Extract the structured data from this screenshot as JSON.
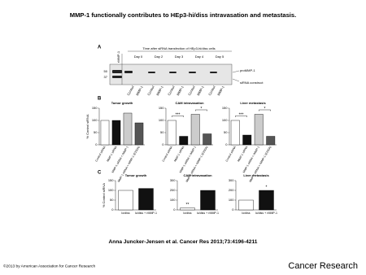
{
  "title": "MMP-1 functionally contributes to HEp3-hi/diss intravasation and metastasis.",
  "citation": "Anna Juncker-Jensen et al. Cancer Res 2013;73:4196-4211",
  "copyright": "©2013 by American Association for Cancer Research",
  "brand": "Cancer Research",
  "panel_a": {
    "label": "A",
    "header": "Time after siRNA transfection of HEp3-hi/diss cells",
    "control_lane": "rMMP-1",
    "days": [
      "Day 0",
      "Day 2",
      "Day 3",
      "Day 4",
      "Day 5"
    ],
    "lanes": [
      "Control",
      "MMP-1"
    ],
    "markers": [
      "50",
      "37"
    ],
    "band_label": "proMMP-1",
    "construct_label": "siRNA construct"
  },
  "panel_b_label": "B",
  "panel_c_label": "C",
  "chart_data": [
    {
      "type": "bar",
      "title": "Tumor growth",
      "ylabel": "% Control siRNA",
      "categories": [
        "Control siRNA",
        "MMP-1 siRNA",
        "MMP-1 siRNA + rMMP-1",
        "MMP-1 siRNA + rMMP-1 (E200A)"
      ],
      "values": [
        100,
        100,
        130,
        90
      ],
      "colors": [
        "#ffffff",
        "#111111",
        "#cccccc",
        "#555555"
      ],
      "ylim": [
        0,
        150
      ],
      "yticks": [
        0,
        50,
        100,
        150
      ]
    },
    {
      "type": "bar",
      "title": "CAM intravasation",
      "categories": [
        "Control siRNA",
        "MMP-1 siRNA",
        "MMP-1 siRNA + rMMP-1",
        "MMP-1 siRNA + rMMP-1 (E200A)"
      ],
      "values": [
        100,
        35,
        125,
        45
      ],
      "colors": [
        "#ffffff",
        "#111111",
        "#cccccc",
        "#555555"
      ],
      "ylim": [
        0,
        150
      ],
      "yticks": [
        0,
        50,
        100,
        150
      ],
      "annotations": [
        "***",
        "*"
      ]
    },
    {
      "type": "bar",
      "title": "Liver metastasis",
      "categories": [
        "Control siRNA",
        "MMP-1 siRNA",
        "MMP-1 siRNA + rMMP-1",
        "MMP-1 siRNA + rMMP-1 (E200A)"
      ],
      "values": [
        100,
        40,
        125,
        35
      ],
      "colors": [
        "#ffffff",
        "#111111",
        "#cccccc",
        "#555555"
      ],
      "ylim": [
        0,
        150
      ],
      "yticks": [
        0,
        50,
        100,
        150
      ],
      "annotations": [
        "***",
        "*"
      ]
    },
    {
      "type": "bar",
      "title": "Tumor growth",
      "ylabel": "% Control siRNA",
      "categories": [
        "lo/diss",
        "lo/diss + rMMP-1"
      ],
      "values": [
        100,
        110
      ],
      "colors": [
        "#ffffff",
        "#111111"
      ],
      "ylim": [
        0,
        150
      ],
      "yticks": [
        0,
        50,
        100,
        150
      ]
    },
    {
      "type": "bar",
      "title": "CAM intravasation",
      "categories": [
        "lo/diss",
        "lo/diss + rMMP-1"
      ],
      "values": [
        20,
        200
      ],
      "colors": [
        "#ffffff",
        "#111111"
      ],
      "ylim": [
        0,
        300
      ],
      "yticks": [
        0,
        100,
        200,
        300
      ],
      "annotations": [
        "**"
      ]
    },
    {
      "type": "bar",
      "title": "Liver metastasis",
      "categories": [
        "lo/diss",
        "lo/diss + rMMP-1"
      ],
      "values": [
        100,
        200
      ],
      "colors": [
        "#ffffff",
        "#111111"
      ],
      "ylim": [
        0,
        300
      ],
      "yticks": [
        0,
        100,
        200,
        300
      ],
      "annotations": [
        "*"
      ]
    }
  ]
}
